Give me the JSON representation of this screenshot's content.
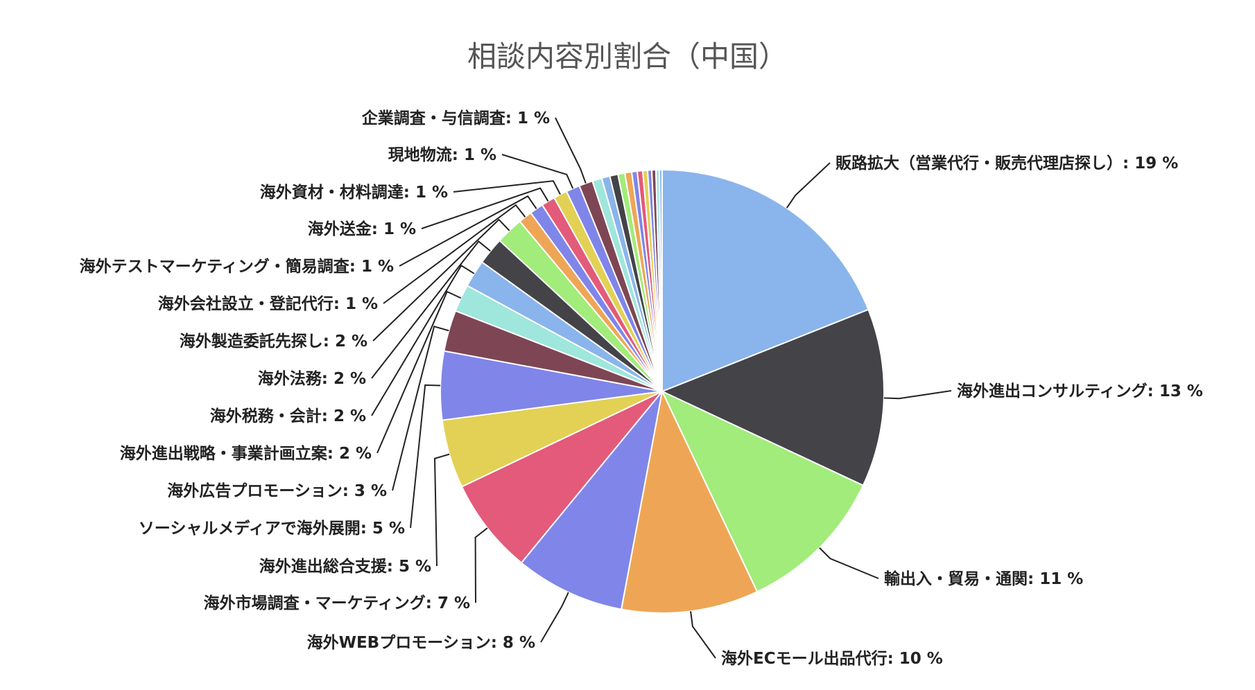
{
  "chart_data": {
    "type": "pie",
    "title": "相談内容別割合（中国）",
    "unit": "%",
    "slices": [
      {
        "label": "販路拡大（営業代行・販売代理店探し）",
        "value": 19,
        "display": "19 %",
        "color": "#8AB4EC"
      },
      {
        "label": "海外進出コンサルティング",
        "value": 13,
        "display": "13 %",
        "color": "#434348"
      },
      {
        "label": "輸出入・貿易・通関",
        "value": 11,
        "display": "11 %",
        "color": "#A1EC7A"
      },
      {
        "label": "海外ECモール出品代行",
        "value": 10,
        "display": "10 %",
        "color": "#EEA656"
      },
      {
        "label": "海外WEBプロモーション",
        "value": 8,
        "display": "8 %",
        "color": "#8085E9"
      },
      {
        "label": "海外市場調査・マーケティング",
        "value": 7,
        "display": "7 %",
        "color": "#E35A7A"
      },
      {
        "label": "海外進出総合支援",
        "value": 5,
        "display": "5 %",
        "color": "#E2D154"
      },
      {
        "label": "ソーシャルメディアで海外展開",
        "value": 5,
        "display": "5 %",
        "color": "#8085E9"
      },
      {
        "label": "海外広告プロモーション",
        "value": 3,
        "display": "3 %",
        "color": "#7E4654"
      },
      {
        "label": "海外進出戦略・事業計画立案",
        "value": 2,
        "display": "2 %",
        "color": "#9FE6DC"
      },
      {
        "label": "海外税務・会計",
        "value": 2,
        "display": "2 %",
        "color": "#8AB4EC"
      },
      {
        "label": "海外法務",
        "value": 2,
        "display": "2 %",
        "color": "#434348"
      },
      {
        "label": "海外製造委託先探し",
        "value": 2,
        "display": "2 %",
        "color": "#A1EC7A"
      },
      {
        "label": "海外会社設立・登記代行",
        "value": 1,
        "display": "1 %",
        "color": "#EEA656"
      },
      {
        "label": "海外テストマーケティング・簡易調査",
        "value": 1,
        "display": "1 %",
        "color": "#8085E9"
      },
      {
        "label": "海外送金",
        "value": 1,
        "display": "1 %",
        "color": "#E35A7A"
      },
      {
        "label": "海外資材・材料調達",
        "value": 1,
        "display": "1 %",
        "color": "#E2D154"
      },
      {
        "label": "現地物流",
        "value": 1,
        "display": "1 %",
        "color": "#8085E9"
      },
      {
        "label": "企業調査・与信調査",
        "value": 1,
        "display": "1 %",
        "color": "#7E4654"
      }
    ],
    "tail_slices": [
      {
        "value": 0.7,
        "color": "#9FE6DC"
      },
      {
        "value": 0.6,
        "color": "#8AB4EC"
      },
      {
        "value": 0.6,
        "color": "#434348"
      },
      {
        "value": 0.5,
        "color": "#A1EC7A"
      },
      {
        "value": 0.5,
        "color": "#EEA656"
      },
      {
        "value": 0.4,
        "color": "#8085E9"
      },
      {
        "value": 0.4,
        "color": "#E35A7A"
      },
      {
        "value": 0.35,
        "color": "#E2D154"
      },
      {
        "value": 0.3,
        "color": "#8085E9"
      },
      {
        "value": 0.3,
        "color": "#7E4654"
      },
      {
        "value": 0.25,
        "color": "#9FE6DC"
      },
      {
        "value": 0.2,
        "color": "#8AB4EC"
      }
    ],
    "legend": "none"
  }
}
